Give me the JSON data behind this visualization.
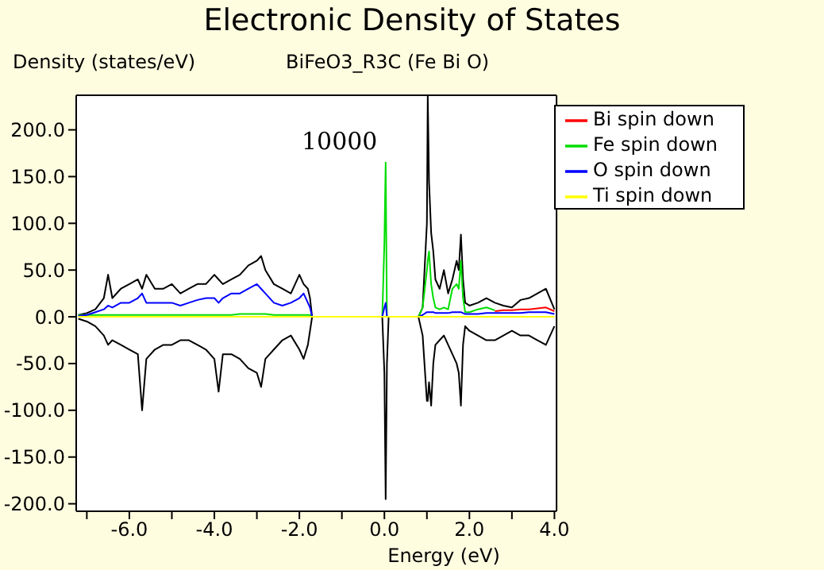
{
  "chart_data": {
    "type": "line",
    "title": "Electronic Density of States",
    "subtitle": "BiFeO3_R3C  (Fe Bi O)",
    "ylabel": "Density (states/eV)",
    "xlabel": "Energy (eV)",
    "annotations": [
      "10000"
    ],
    "x": [
      -7.2,
      -7.0,
      -6.8,
      -6.6,
      -6.5,
      -6.4,
      -6.2,
      -6.0,
      -5.8,
      -5.7,
      -5.6,
      -5.4,
      -5.2,
      -5.0,
      -4.8,
      -4.6,
      -4.4,
      -4.2,
      -4.0,
      -3.9,
      -3.8,
      -3.6,
      -3.4,
      -3.2,
      -3.0,
      -2.9,
      -2.8,
      -2.6,
      -2.4,
      -2.2,
      -2.0,
      -1.9,
      -1.8,
      -1.75,
      -1.7,
      -0.05,
      0.0,
      0.03,
      0.06,
      0.1,
      0.8,
      0.9,
      1.0,
      1.02,
      1.05,
      1.1,
      1.15,
      1.2,
      1.3,
      1.4,
      1.5,
      1.6,
      1.7,
      1.75,
      1.8,
      1.85,
      1.9,
      2.0,
      2.2,
      2.4,
      2.6,
      2.8,
      3.0,
      3.2,
      3.4,
      3.6,
      3.8,
      4.0
    ],
    "series": [
      {
        "color": "#000000",
        "values": [
          2,
          4,
          8,
          20,
          45,
          20,
          30,
          35,
          40,
          30,
          45,
          30,
          30,
          35,
          25,
          30,
          35,
          35,
          45,
          40,
          35,
          40,
          45,
          55,
          60,
          65,
          50,
          35,
          30,
          25,
          45,
          35,
          30,
          20,
          0,
          0,
          0,
          0,
          0,
          0,
          0,
          10,
          100,
          237,
          145,
          90,
          70,
          40,
          30,
          50,
          25,
          40,
          60,
          50,
          88,
          40,
          15,
          12,
          15,
          20,
          15,
          12,
          10,
          18,
          20,
          25,
          30,
          8
        ]
      },
      {
        "color": "#000000",
        "values": [
          -2,
          -5,
          -10,
          -20,
          -30,
          -25,
          -30,
          -35,
          -40,
          -100,
          -45,
          -35,
          -30,
          -30,
          -25,
          -25,
          -30,
          -35,
          -45,
          -80,
          -40,
          -40,
          -45,
          -55,
          -60,
          -75,
          -45,
          -35,
          -25,
          -20,
          -35,
          -45,
          -30,
          -15,
          0,
          0,
          -60,
          -195,
          -50,
          0,
          0,
          -20,
          -90,
          -90,
          -70,
          -95,
          -50,
          -30,
          -25,
          -20,
          -30,
          -40,
          -50,
          -60,
          -95,
          -30,
          -10,
          -15,
          -20,
          -25,
          -25,
          -20,
          -15,
          -20,
          -20,
          -25,
          -30,
          -10
        ]
      },
      {
        "name": "Bi spin down",
        "color": "#ff0000",
        "values": [
          null,
          null,
          null,
          null,
          null,
          null,
          null,
          null,
          null,
          null,
          null,
          null,
          null,
          null,
          null,
          null,
          null,
          null,
          null,
          null,
          null,
          null,
          null,
          null,
          null,
          null,
          null,
          null,
          null,
          null,
          null,
          null,
          null,
          null,
          null,
          null,
          null,
          null,
          null,
          null,
          null,
          null,
          null,
          null,
          null,
          null,
          null,
          null,
          null,
          null,
          null,
          null,
          null,
          null,
          null,
          null,
          null,
          null,
          null,
          null,
          6,
          7,
          7,
          8,
          8,
          9,
          10,
          6
        ]
      },
      {
        "name": "Fe spin down",
        "color": "#00dd00",
        "values": [
          2,
          2,
          2,
          2,
          2,
          2,
          2,
          2,
          2,
          2,
          2,
          2,
          2,
          2,
          2,
          2,
          2,
          2,
          2,
          2,
          2,
          2,
          3,
          3,
          3,
          3,
          3,
          2,
          2,
          2,
          2,
          2,
          2,
          2,
          0,
          0,
          80,
          165,
          0,
          0,
          0,
          10,
          50,
          60,
          70,
          35,
          20,
          10,
          8,
          10,
          8,
          30,
          35,
          30,
          60,
          20,
          5,
          5,
          8,
          10,
          7,
          null,
          null,
          null,
          null,
          null,
          null,
          null
        ]
      },
      {
        "name": "O spin down",
        "color": "#0000ff",
        "values": [
          1,
          2,
          5,
          8,
          12,
          10,
          15,
          15,
          20,
          25,
          15,
          15,
          15,
          15,
          12,
          15,
          18,
          20,
          20,
          15,
          20,
          25,
          25,
          30,
          35,
          30,
          25,
          15,
          12,
          15,
          20,
          25,
          15,
          10,
          0,
          0,
          10,
          15,
          0,
          0,
          0,
          2,
          5,
          5,
          5,
          5,
          5,
          4,
          4,
          4,
          4,
          5,
          5,
          5,
          5,
          4,
          3,
          3,
          3,
          4,
          4,
          4,
          4,
          4,
          5,
          5,
          5,
          3
        ]
      },
      {
        "name": "Ti spin down",
        "color": "#ffff00",
        "values": [
          0,
          0,
          0,
          0,
          0,
          0,
          0,
          0,
          0,
          0,
          0,
          0,
          0,
          0,
          0,
          0,
          0,
          0,
          0,
          0,
          0,
          0,
          0,
          0,
          0,
          0,
          0,
          0,
          0,
          0,
          0,
          0,
          0,
          0,
          0,
          0,
          0,
          0,
          0,
          0,
          0,
          0,
          0,
          0,
          0,
          0,
          0,
          0,
          0,
          0,
          0,
          0,
          0,
          0,
          0,
          0,
          0,
          0,
          0,
          0,
          0,
          0,
          0,
          0,
          0,
          0,
          0,
          0
        ]
      }
    ],
    "xlim": [
      -7.25,
      4.05
    ],
    "ylim": [
      -208,
      237
    ],
    "xticks": [
      {
        "value": -7,
        "label": null
      },
      {
        "value": -6,
        "label": "-6.0"
      },
      {
        "value": -5,
        "label": null
      },
      {
        "value": -4,
        "label": "-4.0"
      },
      {
        "value": -3,
        "label": null
      },
      {
        "value": -2,
        "label": "-2.0"
      },
      {
        "value": -1,
        "label": null
      },
      {
        "value": 0,
        "label": "0.0"
      },
      {
        "value": 1,
        "label": null
      },
      {
        "value": 2,
        "label": "2.0"
      },
      {
        "value": 3,
        "label": null
      },
      {
        "value": 4,
        "label": "4.0"
      }
    ],
    "yticks": [
      {
        "value": -200,
        "label": "-200.0"
      },
      {
        "value": -150,
        "label": "-150.0"
      },
      {
        "value": -100,
        "label": "-100.0"
      },
      {
        "value": -50,
        "label": "-50.0"
      },
      {
        "value": 0,
        "label": "0.0"
      },
      {
        "value": 50,
        "label": "50.0"
      },
      {
        "value": 100,
        "label": "100.0"
      },
      {
        "value": 150,
        "label": "150.0"
      },
      {
        "value": 200,
        "label": "200.0"
      }
    ],
    "legend": "top right",
    "grid": false,
    "marker": "none",
    "line_style": "solid"
  }
}
